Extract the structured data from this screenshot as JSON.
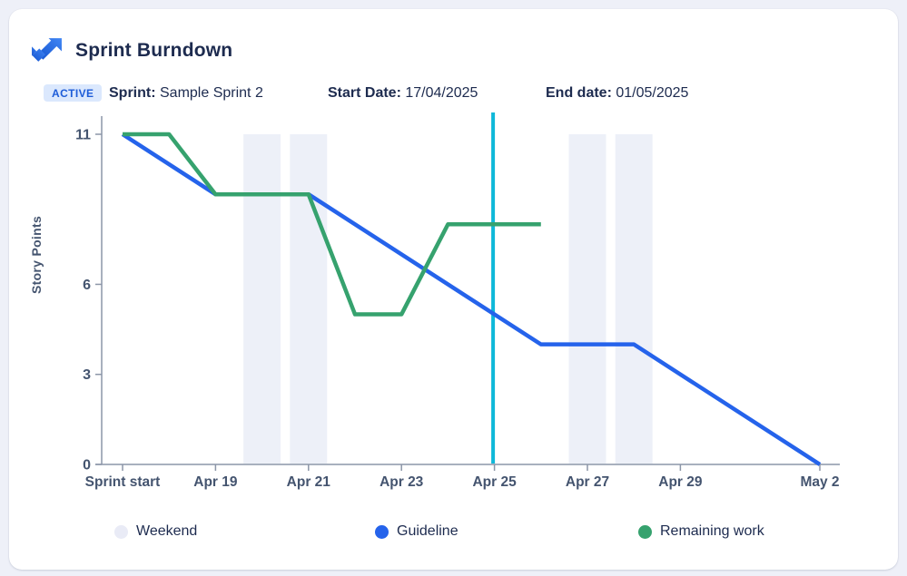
{
  "header": {
    "title": "Sprint Burndown",
    "status_badge": "ACTIVE",
    "meta": [
      {
        "label": "Sprint:",
        "value": "Sample Sprint 2"
      },
      {
        "label": "Start Date:",
        "value": "17/04/2025"
      },
      {
        "label": "End date:",
        "value": "01/05/2025"
      }
    ]
  },
  "icons": {
    "logo": "jira-logo-icon"
  },
  "chart_data": {
    "type": "line",
    "title": "Sprint Burndown",
    "xlabel": "",
    "ylabel": "Story Points",
    "ylim": [
      0,
      11
    ],
    "y_ticks": [
      11,
      6,
      3,
      0
    ],
    "x_range_days": [
      0,
      15
    ],
    "x_ticks": [
      {
        "day": 0,
        "label": "Sprint start"
      },
      {
        "day": 2,
        "label": "Apr 19"
      },
      {
        "day": 4,
        "label": "Apr 21"
      },
      {
        "day": 6,
        "label": "Apr 23"
      },
      {
        "day": 8,
        "label": "Apr 25"
      },
      {
        "day": 10,
        "label": "Apr 27"
      },
      {
        "day": 12,
        "label": "Apr 29"
      },
      {
        "day": 15,
        "label": "May 2"
      }
    ],
    "weekend_days": [
      3,
      4,
      10,
      11
    ],
    "today_day": 8,
    "series": [
      {
        "name": "Guideline",
        "color": "#2563eb",
        "points": [
          [
            0,
            11
          ],
          [
            2,
            9
          ],
          [
            4,
            9
          ],
          [
            9,
            4
          ],
          [
            11,
            4
          ],
          [
            15,
            0
          ]
        ]
      },
      {
        "name": "Remaining work",
        "color": "#36a26e",
        "points": [
          [
            0,
            11
          ],
          [
            1,
            11
          ],
          [
            2,
            9
          ],
          [
            4,
            9
          ],
          [
            5,
            5
          ],
          [
            6,
            5
          ],
          [
            7,
            8
          ],
          [
            9,
            8
          ]
        ]
      }
    ],
    "daily_values": {
      "guideline": [
        11,
        10,
        9,
        9,
        9,
        8,
        7,
        6,
        5,
        4,
        4,
        4,
        3,
        2,
        1,
        0
      ],
      "remaining_work": [
        11,
        11,
        9,
        9,
        9,
        5,
        5,
        8,
        8,
        8
      ]
    },
    "colors": {
      "weekend_band": "#edf0f8",
      "today_line": "#0eb8d9",
      "axis": "#8c96a8",
      "tick_label": "#44546f"
    },
    "legend": [
      {
        "label": "Weekend",
        "color": "#e9ebf6"
      },
      {
        "label": "Guideline",
        "color": "#2563eb"
      },
      {
        "label": "Remaining work",
        "color": "#36a26e"
      }
    ],
    "legend_position": "bottom",
    "grid": false
  }
}
